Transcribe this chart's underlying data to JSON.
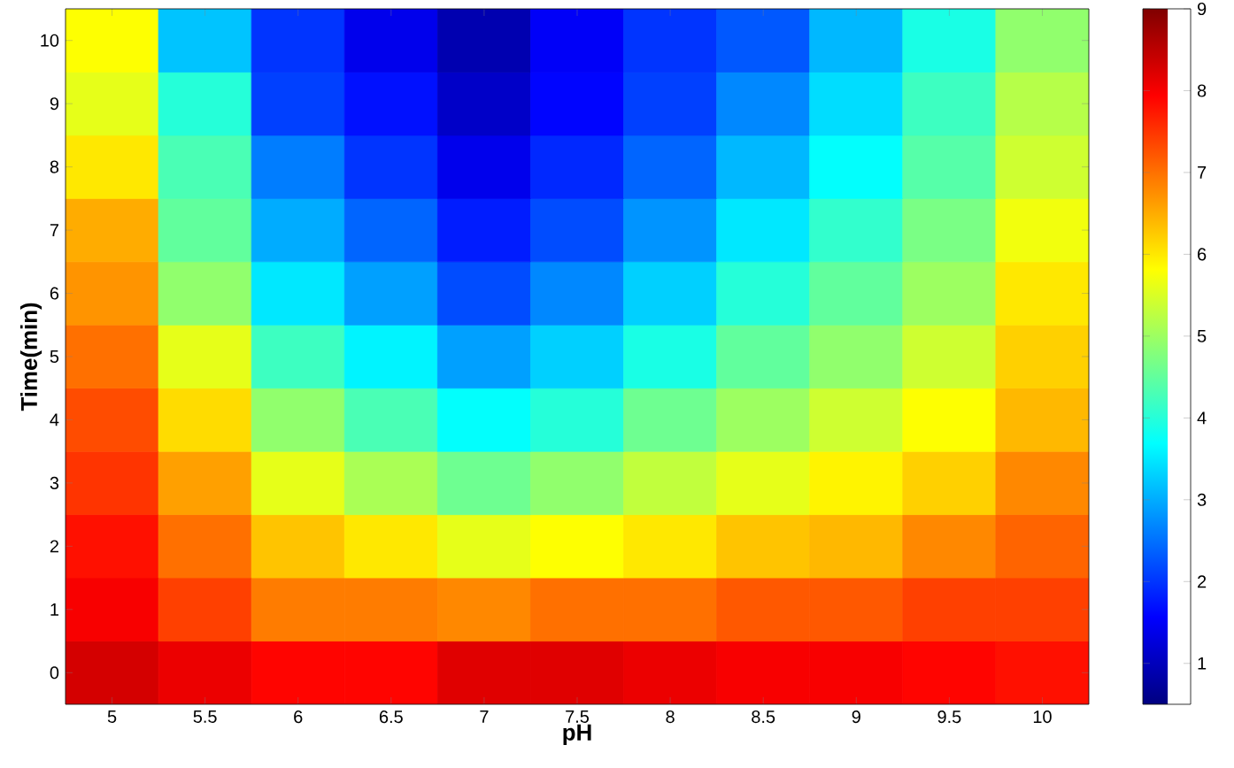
{
  "chart_data": {
    "type": "heatmap",
    "xlabel": "pH",
    "ylabel": "Time(min)",
    "categories": [
      "5",
      "5.5",
      "6",
      "6.5",
      "7",
      "7.5",
      "8",
      "8.5",
      "9",
      "9.5",
      "10"
    ],
    "y_categories": [
      "10",
      "9",
      "8",
      "7",
      "6",
      "5",
      "4",
      "3",
      "2",
      "1",
      "0"
    ],
    "cells": [
      [
        5.8,
        3.2,
        2.0,
        1.4,
        0.9,
        1.5,
        2.0,
        2.3,
        3.1,
        3.9,
        4.9
      ],
      [
        5.6,
        4.0,
        2.1,
        1.7,
        1.1,
        1.6,
        2.1,
        2.7,
        3.4,
        4.2,
        5.2
      ],
      [
        6.0,
        4.3,
        2.6,
        2.0,
        1.4,
        1.9,
        2.4,
        3.1,
        3.7,
        4.4,
        5.4
      ],
      [
        6.5,
        4.5,
        3.0,
        2.4,
        1.8,
        2.2,
        2.8,
        3.5,
        4.1,
        4.7,
        5.7
      ],
      [
        6.7,
        4.9,
        3.5,
        2.9,
        2.2,
        2.7,
        3.3,
        4.0,
        4.5,
        5.0,
        6.0
      ],
      [
        7.0,
        5.6,
        4.2,
        3.6,
        2.9,
        3.3,
        3.9,
        4.5,
        4.9,
        5.4,
        6.2
      ],
      [
        7.3,
        6.1,
        4.9,
        4.3,
        3.7,
        4.0,
        4.6,
        5.0,
        5.4,
        5.8,
        6.4
      ],
      [
        7.5,
        6.6,
        5.6,
        5.1,
        4.6,
        4.9,
        5.3,
        5.6,
        5.9,
        6.2,
        6.8
      ],
      [
        7.8,
        7.0,
        6.3,
        6.0,
        5.6,
        5.8,
        6.0,
        6.3,
        6.4,
        6.8,
        7.1
      ],
      [
        8.0,
        7.4,
        6.9,
        6.9,
        6.8,
        7.0,
        7.0,
        7.2,
        7.2,
        7.4,
        7.4
      ],
      [
        8.3,
        8.1,
        7.9,
        7.9,
        8.2,
        8.2,
        8.1,
        8.0,
        8.0,
        7.9,
        7.8
      ]
    ],
    "clim": [
      0.5,
      9
    ],
    "cticks": [
      1,
      2,
      3,
      4,
      5,
      6,
      7,
      8,
      9
    ]
  }
}
